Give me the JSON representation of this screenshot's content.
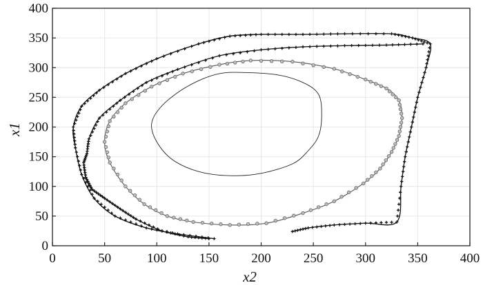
{
  "chart_data": {
    "type": "scatter",
    "title": "",
    "xlabel": "x2",
    "ylabel": "x1",
    "xlim": [
      0,
      400
    ],
    "ylim": [
      0,
      400
    ],
    "xticks": [
      "0",
      "50",
      "100",
      "150",
      "200",
      "250",
      "300",
      "350",
      "400"
    ],
    "yticks": [
      "0",
      "50",
      "100",
      "150",
      "200",
      "250",
      "300",
      "350",
      "400"
    ],
    "grid": true,
    "series": [
      {
        "style": "black-plus-markers",
        "points": [
          [
            155,
            12
          ],
          [
            120,
            20
          ],
          [
            90,
            30
          ],
          [
            60,
            50
          ],
          [
            40,
            80
          ],
          [
            28,
            120
          ],
          [
            22,
            165
          ],
          [
            20,
            200
          ],
          [
            28,
            235
          ],
          [
            45,
            262
          ],
          [
            70,
            290
          ],
          [
            100,
            315
          ],
          [
            140,
            340
          ],
          [
            170,
            353
          ],
          [
            200,
            356
          ],
          [
            240,
            356
          ],
          [
            280,
            357
          ],
          [
            325,
            357
          ],
          [
            345,
            350
          ],
          [
            362,
            340
          ],
          [
            358,
            300
          ],
          [
            350,
            250
          ],
          [
            344,
            200
          ],
          [
            338,
            150
          ],
          [
            334,
            100
          ],
          [
            330,
            40
          ],
          [
            300,
            38
          ],
          [
            270,
            35
          ],
          [
            245,
            30
          ],
          [
            230,
            24
          ]
        ]
      },
      {
        "style": "black-plus-markers",
        "points": [
          [
            355,
            340
          ],
          [
            320,
            338
          ],
          [
            280,
            337
          ],
          [
            240,
            335
          ],
          [
            200,
            330
          ],
          [
            160,
            320
          ],
          [
            120,
            297
          ],
          [
            90,
            275
          ],
          [
            65,
            245
          ],
          [
            45,
            215
          ],
          [
            35,
            180
          ],
          [
            33,
            155
          ],
          [
            30,
            140
          ],
          [
            32,
            115
          ],
          [
            38,
            95
          ],
          [
            50,
            80
          ],
          [
            65,
            62
          ],
          [
            80,
            45
          ],
          [
            105,
            25
          ],
          [
            130,
            15
          ],
          [
            150,
            12
          ]
        ]
      },
      {
        "style": "gray-circle-markers",
        "points": [
          [
            190,
            312
          ],
          [
            230,
            310
          ],
          [
            270,
            298
          ],
          [
            300,
            280
          ],
          [
            320,
            265
          ],
          [
            332,
            245
          ],
          [
            335,
            215
          ],
          [
            332,
            185
          ],
          [
            325,
            158
          ],
          [
            314,
            130
          ],
          [
            298,
            105
          ],
          [
            270,
            75
          ],
          [
            240,
            55
          ],
          [
            205,
            38
          ],
          [
            170,
            35
          ],
          [
            135,
            40
          ],
          [
            110,
            50
          ],
          [
            88,
            70
          ],
          [
            70,
            100
          ],
          [
            55,
            140
          ],
          [
            50,
            175
          ],
          [
            55,
            210
          ],
          [
            70,
            240
          ],
          [
            95,
            268
          ],
          [
            125,
            290
          ],
          [
            160,
            305
          ]
        ]
      },
      {
        "style": "thin-line",
        "points": [
          [
            180,
            292
          ],
          [
            215,
            288
          ],
          [
            240,
            275
          ],
          [
            255,
            255
          ],
          [
            258,
            220
          ],
          [
            255,
            185
          ],
          [
            245,
            160
          ],
          [
            230,
            138
          ],
          [
            200,
            122
          ],
          [
            170,
            118
          ],
          [
            140,
            125
          ],
          [
            115,
            145
          ],
          [
            100,
            175
          ],
          [
            95,
            205
          ],
          [
            103,
            232
          ],
          [
            120,
            258
          ],
          [
            140,
            278
          ],
          [
            160,
            290
          ]
        ]
      }
    ]
  }
}
